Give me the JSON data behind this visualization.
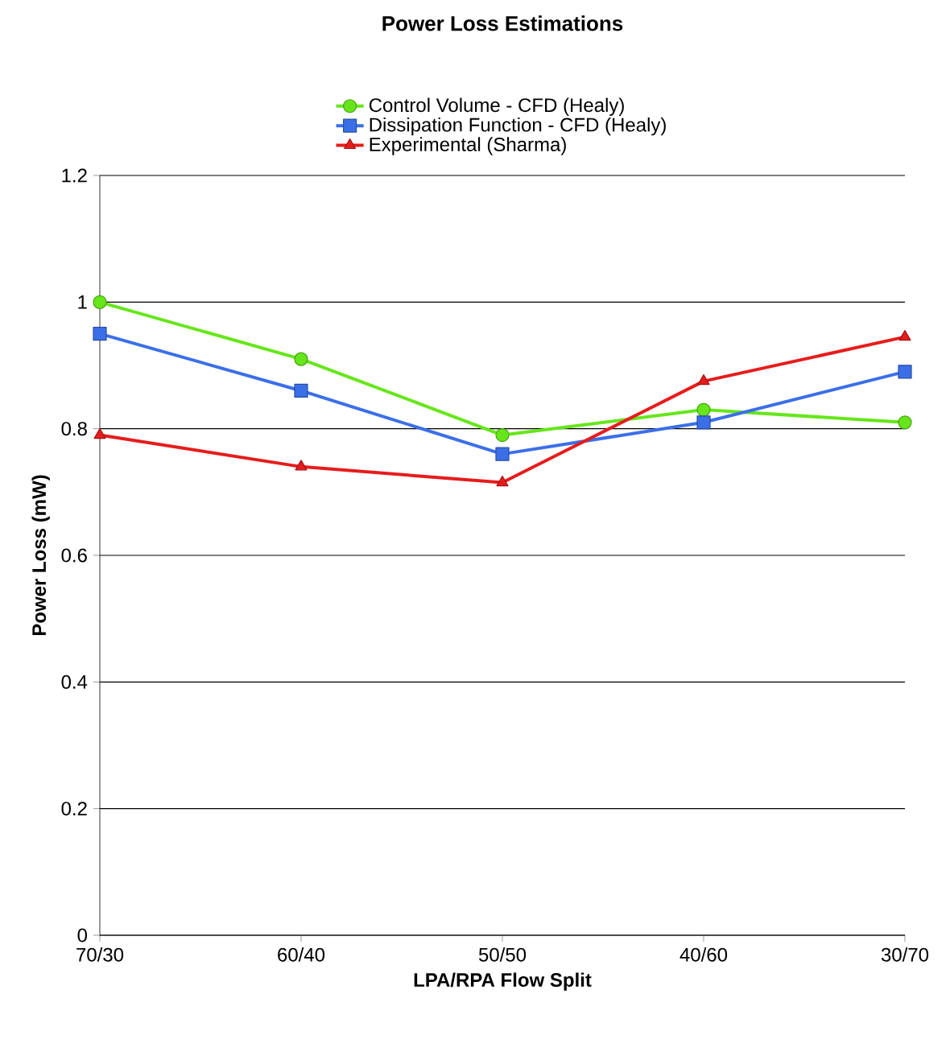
{
  "chart_data": {
    "type": "line",
    "title": "Power Loss Estimations",
    "xlabel": "LPA/RPA Flow Split",
    "ylabel": "Power Loss (mW)",
    "categories": [
      "70/30",
      "60/40",
      "50/50",
      "40/60",
      "30/70"
    ],
    "series": [
      {
        "name": "Control Volume - CFD (Healy)",
        "color": "#66e61a",
        "marker": "circle",
        "values": [
          1.0,
          0.91,
          0.79,
          0.83,
          0.81
        ]
      },
      {
        "name": "Dissipation Function - CFD (Healy)",
        "color": "#3b6fe8",
        "marker": "square",
        "values": [
          0.95,
          0.86,
          0.76,
          0.81,
          0.89
        ]
      },
      {
        "name": "Experimental (Sharma)",
        "color": "#e61c1c",
        "marker": "triangle",
        "values": [
          0.79,
          0.74,
          0.715,
          0.875,
          0.945
        ]
      }
    ],
    "ylim": [
      0,
      1.2
    ],
    "yticks": [
      0,
      0.2,
      0.4,
      0.6,
      0.8,
      1,
      1.2
    ],
    "grid": "y",
    "legend": "top",
    "line_style": "solid"
  }
}
